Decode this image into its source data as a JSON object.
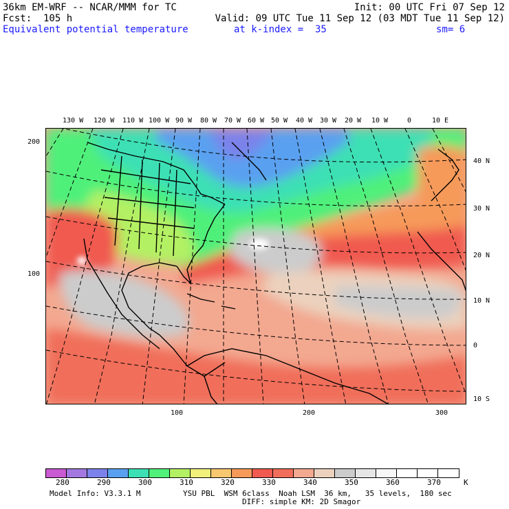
{
  "header": {
    "model_line": "36km EM-WRF -- NCAR/MMM for TC",
    "init_line": "Init: 00 UTC Fri 07 Sep 12",
    "fcst_line": "Fcst:  105 h",
    "valid_line": "Valid: 09 UTC Tue 11 Sep 12 (03 MDT Tue 11 Sep 12)",
    "field_name": "Equivalent potential temperature",
    "level": "at k-index =  35",
    "smoothing": "sm= 6"
  },
  "top_lon_labels": [
    "130 W",
    "120 W",
    "110 W",
    "100 W",
    "90 W",
    "80 W",
    "70 W",
    "60 W",
    "50 W",
    "40 W",
    "30 W",
    "20 W",
    "10 W",
    "0",
    "10 E"
  ],
  "right_lat_labels": [
    "40 N",
    "30 N",
    "20 N",
    "10 N",
    "0",
    "10 S"
  ],
  "left_grid_labels": [
    "200",
    "100"
  ],
  "bottom_grid_labels": [
    "100",
    "200",
    "300"
  ],
  "colorbar": {
    "labels": [
      "280",
      "290",
      "300",
      "310",
      "320",
      "330",
      "340",
      "350",
      "360",
      "370"
    ],
    "unit": "K",
    "colors": [
      "#c85ad2",
      "#a278e0",
      "#7c82ea",
      "#5aa0f0",
      "#3ce0b4",
      "#50f07a",
      "#b4f064",
      "#f0f07a",
      "#f7c870",
      "#f69a5a",
      "#f05a50",
      "#f06e5a",
      "#f3a890",
      "#ecd2be",
      "#cccccc",
      "#e6e6e6",
      "#f6f6f6",
      "#ffffff",
      "#ffffff",
      "#ffffff"
    ]
  },
  "footer": {
    "model_info": "Model Info: V3.3.1 M",
    "physics": "YSU PBL  WSM 6class  Noah LSM  36 km,   35 levels,  180 sec",
    "diffusion": "DIFF: simple KM: 2D Smagor"
  }
}
